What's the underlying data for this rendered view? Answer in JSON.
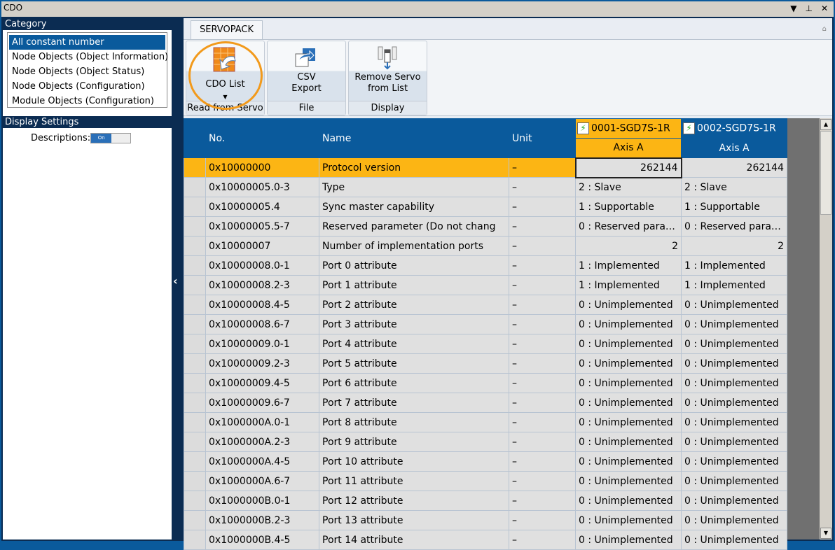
{
  "window": {
    "title": "CDO",
    "menu_icon": "dropdown-icon",
    "pin_icon": "pin-icon",
    "close_icon": "close-icon"
  },
  "sidebar": {
    "category_title": "Category",
    "categories": [
      "All constant number",
      "Node Objects (Object Information)",
      "Node Objects (Object Status)",
      "Node Objects (Configuration)",
      "Module Objects (Configuration)"
    ],
    "selected": 0,
    "display_title": "Display Settings",
    "descriptions_label": "Descriptions:",
    "toggle_on": "On"
  },
  "ribbon": {
    "tab": "SERVOPACK",
    "groups": [
      {
        "label": "Read from Servo",
        "button": "CDO List"
      },
      {
        "label": "File",
        "button_line1": "CSV",
        "button_line2": "Export"
      },
      {
        "label": "Display",
        "button_line1": "Remove Servo",
        "button_line2": "from List"
      }
    ]
  },
  "grid": {
    "headers": {
      "no": "No.",
      "name": "Name",
      "unit": "Unit"
    },
    "axes": [
      {
        "device": "0001-SGD7S-1R",
        "axis": "Axis A"
      },
      {
        "device": "0002-SGD7S-1R",
        "axis": "Axis A"
      }
    ],
    "rows": [
      [
        "0x10000000",
        "Protocol version",
        "–",
        "262144",
        "262144"
      ],
      [
        "0x10000005.0-3",
        "Type",
        "–",
        "2 : Slave",
        "2 : Slave"
      ],
      [
        "0x10000005.4",
        "Sync master capability",
        "–",
        "1 : Supportable",
        "1 : Supportable"
      ],
      [
        "0x10000005.5-7",
        "Reserved parameter (Do not chang",
        "–",
        "0 : Reserved para…",
        "0 : Reserved para…"
      ],
      [
        "0x10000007",
        "Number of implementation ports",
        "–",
        "2",
        "2"
      ],
      [
        "0x10000008.0-1",
        "Port 0 attribute",
        "–",
        "1 : Implemented",
        "1 : Implemented"
      ],
      [
        "0x10000008.2-3",
        "Port 1 attribute",
        "–",
        "1 : Implemented",
        "1 : Implemented"
      ],
      [
        "0x10000008.4-5",
        "Port 2 attribute",
        "–",
        "0 : Unimplemented",
        "0 : Unimplemented"
      ],
      [
        "0x10000008.6-7",
        "Port 3 attribute",
        "–",
        "0 : Unimplemented",
        "0 : Unimplemented"
      ],
      [
        "0x10000009.0-1",
        "Port 4 attribute",
        "–",
        "0 : Unimplemented",
        "0 : Unimplemented"
      ],
      [
        "0x10000009.2-3",
        "Port 5 attribute",
        "–",
        "0 : Unimplemented",
        "0 : Unimplemented"
      ],
      [
        "0x10000009.4-5",
        "Port 6 attribute",
        "–",
        "0 : Unimplemented",
        "0 : Unimplemented"
      ],
      [
        "0x10000009.6-7",
        "Port 7 attribute",
        "–",
        "0 : Unimplemented",
        "0 : Unimplemented"
      ],
      [
        "0x1000000A.0-1",
        "Port 8 attribute",
        "–",
        "0 : Unimplemented",
        "0 : Unimplemented"
      ],
      [
        "0x1000000A.2-3",
        "Port 9 attribute",
        "–",
        "0 : Unimplemented",
        "0 : Unimplemented"
      ],
      [
        "0x1000000A.4-5",
        "Port 10 attribute",
        "–",
        "0 : Unimplemented",
        "0 : Unimplemented"
      ],
      [
        "0x1000000A.6-7",
        "Port 11 attribute",
        "–",
        "0 : Unimplemented",
        "0 : Unimplemented"
      ],
      [
        "0x1000000B.0-1",
        "Port 12 attribute",
        "–",
        "0 : Unimplemented",
        "0 : Unimplemented"
      ],
      [
        "0x1000000B.2-3",
        "Port 13 attribute",
        "–",
        "0 : Unimplemented",
        "0 : Unimplemented"
      ],
      [
        "0x1000000B.4-5",
        "Port 14 attribute",
        "–",
        "0 : Unimplemented",
        "0 : Unimplemented"
      ]
    ],
    "selected_row": 0
  },
  "colors": {
    "accent": "#0a5a9c",
    "highlight": "#fcb514",
    "callout": "#f29a1c"
  }
}
